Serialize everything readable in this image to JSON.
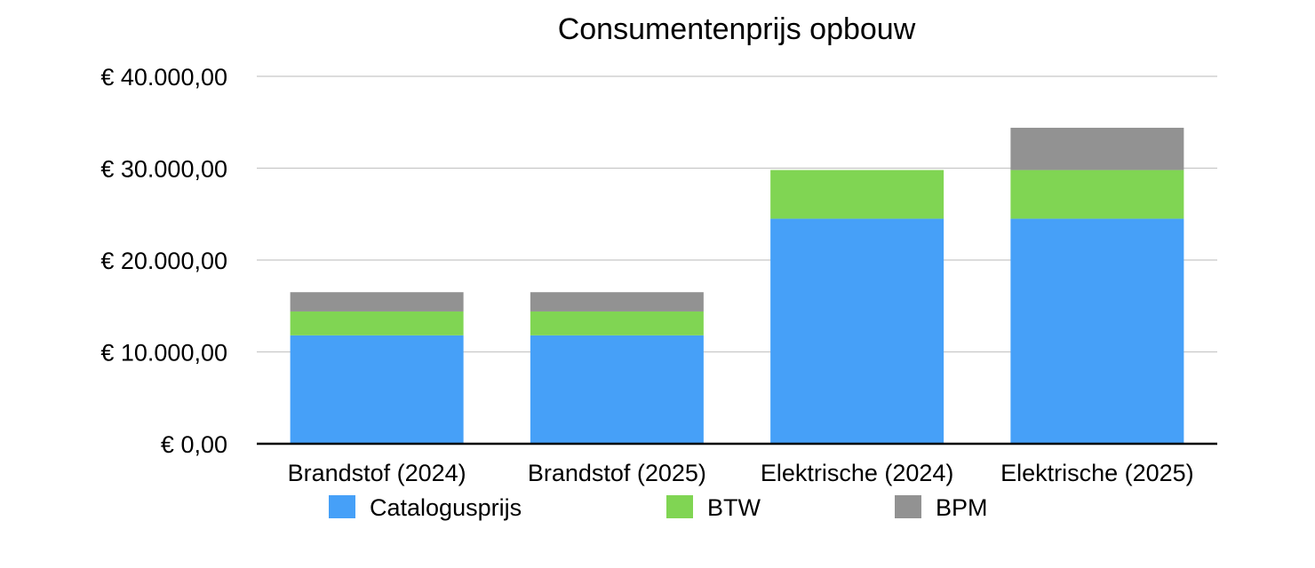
{
  "chart_data": {
    "type": "bar",
    "stacked": true,
    "title": "Consumentenprijs opbouw",
    "xlabel": "",
    "ylabel": "",
    "categories": [
      "Brandstof (2024)",
      "Brandstof (2025)",
      "Elektrische (2024)",
      "Elektrische (2025)"
    ],
    "series": [
      {
        "name": "Catalogusprijs",
        "color": "#46a0f8",
        "values": [
          11800,
          11800,
          24500,
          24500
        ]
      },
      {
        "name": "BTW",
        "color": "#80d553",
        "values": [
          2600,
          2600,
          5300,
          5300
        ]
      },
      {
        "name": "BPM",
        "color": "#929292",
        "values": [
          2100,
          2100,
          0,
          4600
        ]
      }
    ],
    "ylim": [
      0,
      40000
    ],
    "yticks": [
      0,
      10000,
      20000,
      30000,
      40000
    ],
    "ytick_labels": [
      "€ 0,00",
      "€ 10.000,00",
      "€ 20.000,00",
      "€ 30.000,00",
      "€ 40.000,00"
    ],
    "grid": true,
    "legend_position": "bottom"
  }
}
